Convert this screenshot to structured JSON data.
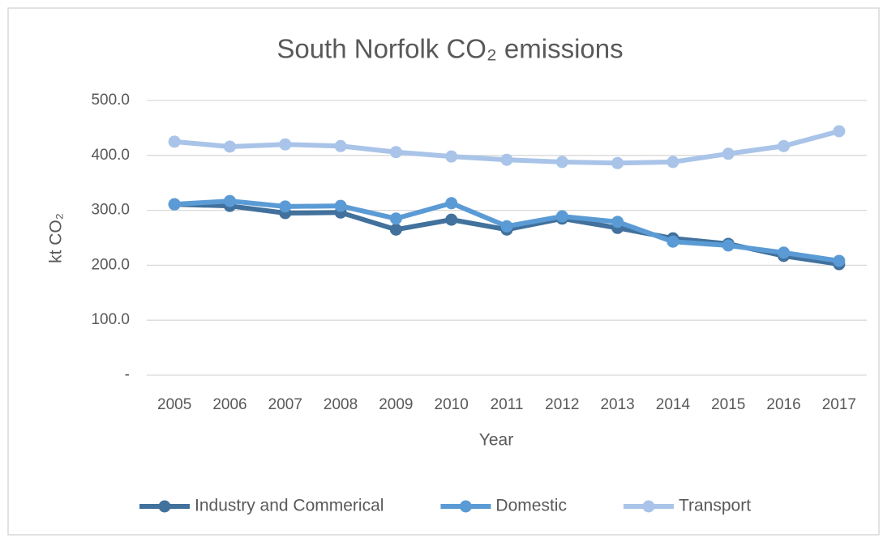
{
  "chart_data": {
    "type": "line",
    "title": "South Norfolk CO₂ emissions",
    "x_label": "Year",
    "y_label": "kt CO₂",
    "categories": [
      "2005",
      "2006",
      "2007",
      "2008",
      "2009",
      "2010",
      "2011",
      "2012",
      "2013",
      "2014",
      "2015",
      "2016",
      "2017"
    ],
    "series": [
      {
        "name": "Industry and Commerical",
        "color": "#41719c",
        "values": [
          311,
          308,
          295,
          296,
          265,
          283,
          265,
          285,
          268,
          249,
          239,
          217,
          202
        ]
      },
      {
        "name": "Domestic",
        "color": "#5b9bd5",
        "values": [
          311,
          317,
          307,
          308,
          285,
          313,
          271,
          289,
          279,
          243,
          236,
          223,
          208
        ]
      },
      {
        "name": "Transport",
        "color": "#a9c4e8",
        "values": [
          425,
          416,
          420,
          417,
          406,
          398,
          392,
          388,
          386,
          388,
          403,
          417,
          444
        ]
      }
    ],
    "ylim": [
      0,
      500
    ],
    "yticks": [
      {
        "value": 0,
        "label": "-"
      },
      {
        "value": 100,
        "label": "100.0"
      },
      {
        "value": 200,
        "label": "200.0"
      },
      {
        "value": 300,
        "label": "300.0"
      },
      {
        "value": 400,
        "label": "400.0"
      },
      {
        "value": 500,
        "label": "500.0"
      }
    ],
    "grid": true,
    "legend": "bottom"
  }
}
